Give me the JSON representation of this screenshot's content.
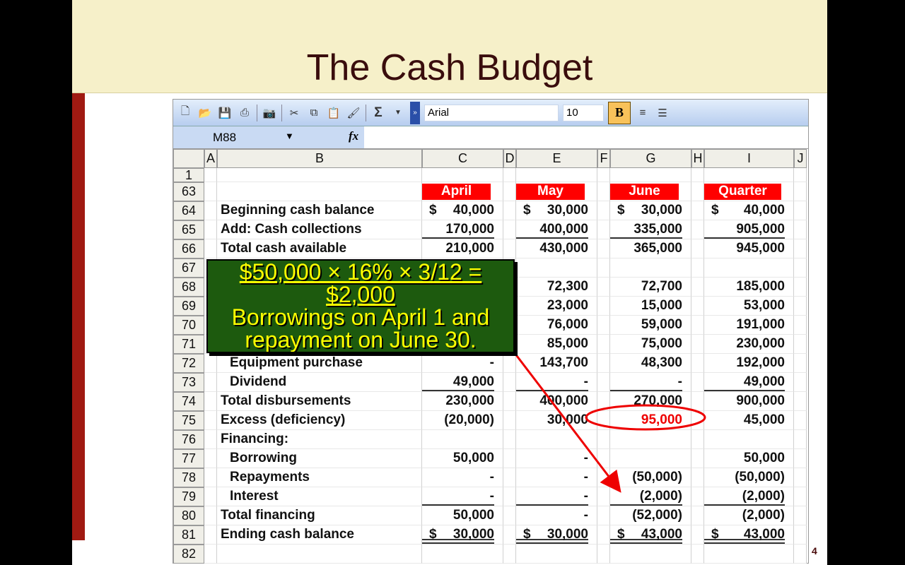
{
  "slide": {
    "title": "The Cash Budget",
    "page_number": "4"
  },
  "toolbar": {
    "font_name": "Arial",
    "font_size": "10",
    "bold_label": "B",
    "icons": [
      "new-icon",
      "open-icon",
      "save-icon",
      "print-icon",
      "camera-icon",
      "cut-icon",
      "copy-icon",
      "paste-icon",
      "format-painter-icon",
      "autosum-icon"
    ],
    "sum_glyph": "Σ"
  },
  "formula_bar": {
    "name_box": "M88",
    "fx": "fx"
  },
  "columns": [
    "A",
    "B",
    "C",
    "D",
    "E",
    "F",
    "G",
    "H",
    "I",
    "J"
  ],
  "months": [
    "April",
    "May",
    "June",
    "Quarter"
  ],
  "rows": [
    {
      "n": "1",
      "label": "",
      "vals": [
        "",
        "",
        "",
        ""
      ],
      "short": true
    },
    {
      "n": "63",
      "label": "",
      "header": true
    },
    {
      "n": "64",
      "label": "Beginning cash balance",
      "vals": [
        "40,000",
        "30,000",
        "30,000",
        "40,000"
      ],
      "dollar": true
    },
    {
      "n": "65",
      "label": "Add: Cash collections",
      "vals": [
        "170,000",
        "400,000",
        "335,000",
        "905,000"
      ],
      "ul": true
    },
    {
      "n": "66",
      "label": "Total cash available",
      "vals": [
        "210,000",
        "430,000",
        "365,000",
        "945,000"
      ]
    },
    {
      "n": "67",
      "label": "",
      "vals": [
        "",
        "",
        "",
        ""
      ]
    },
    {
      "n": "68",
      "label": "",
      "vals": [
        "",
        "72,300",
        "72,700",
        "185,000"
      ]
    },
    {
      "n": "69",
      "label": "",
      "vals": [
        "",
        "23,000",
        "15,000",
        "53,000"
      ]
    },
    {
      "n": "70",
      "label": "",
      "vals": [
        "",
        "76,000",
        "59,000",
        "191,000"
      ]
    },
    {
      "n": "71",
      "label": "",
      "vals": [
        "",
        "85,000",
        "75,000",
        "230,000"
      ]
    },
    {
      "n": "72",
      "label": "Equipment purchase",
      "indent": true,
      "vals": [
        "-",
        "143,700",
        "48,300",
        "192,000"
      ]
    },
    {
      "n": "73",
      "label": "Dividend",
      "indent": true,
      "vals": [
        "49,000",
        "-",
        "-",
        "49,000"
      ],
      "ul": true
    },
    {
      "n": "74",
      "label": "Total disbursements",
      "vals": [
        "230,000",
        "400,000",
        "270,000",
        "900,000"
      ]
    },
    {
      "n": "75",
      "label": "Excess (deficiency)",
      "vals": [
        "(20,000)",
        "30,000",
        "95,000",
        "45,000"
      ],
      "redcol": 2
    },
    {
      "n": "76",
      "label": "Financing:",
      "vals": [
        "",
        "",
        "",
        ""
      ]
    },
    {
      "n": "77",
      "label": "Borrowing",
      "indent": true,
      "vals": [
        "50,000",
        "-",
        "",
        "50,000"
      ]
    },
    {
      "n": "78",
      "label": "Repayments",
      "indent": true,
      "vals": [
        "-",
        "-",
        "(50,000)",
        "(50,000)"
      ]
    },
    {
      "n": "79",
      "label": "Interest",
      "indent": true,
      "vals": [
        "-",
        "-",
        "(2,000)",
        "(2,000)"
      ],
      "ul": true
    },
    {
      "n": "80",
      "label": "Total financing",
      "vals": [
        "50,000",
        "-",
        "(52,000)",
        "(2,000)"
      ]
    },
    {
      "n": "81",
      "label": "Ending cash balance",
      "vals": [
        "30,000",
        "30,000",
        "43,000",
        "43,000"
      ],
      "dollar": true,
      "dul": true
    },
    {
      "n": "82",
      "label": "",
      "vals": [
        "",
        "",
        "",
        ""
      ]
    }
  ],
  "dollar_sign": "$",
  "callout": {
    "line1": "$50,000 × 16% × 3/12 = $2,000",
    "line2": "Borrowings on April 1 and",
    "line3": "repayment on June 30."
  },
  "colors": {
    "title_band": "#f6f0c9",
    "accent_bar": "#a01a12",
    "month_header": "#ff0000",
    "callout_bg": "#1d5a0e",
    "callout_text": "#ffff00",
    "highlight": "#e00000"
  }
}
